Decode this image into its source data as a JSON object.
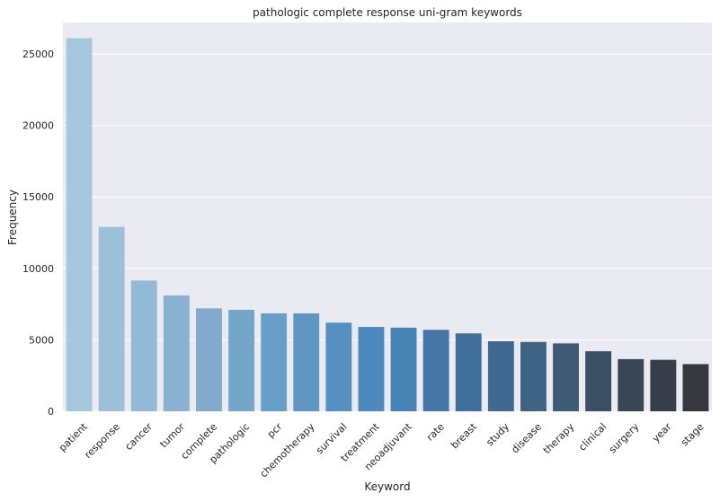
{
  "chart_data": {
    "type": "bar",
    "title": "pathologic complete response uni-gram keywords",
    "xlabel": "Keyword",
    "ylabel": "Frequency",
    "ylim": [
      0,
      27200
    ],
    "yticks": [
      0,
      5000,
      10000,
      15000,
      20000,
      25000
    ],
    "grid": true,
    "categories": [
      "patient",
      "response",
      "cancer",
      "tumor",
      "complete",
      "pathologic",
      "pcr",
      "chemotherapy",
      "survival",
      "treatment",
      "neoadjuvant",
      "rate",
      "breast",
      "study",
      "disease",
      "therapy",
      "clinical",
      "surgery",
      "year",
      "stage"
    ],
    "values": [
      26100,
      12900,
      9150,
      8100,
      7200,
      7100,
      6850,
      6850,
      6200,
      5900,
      5850,
      5700,
      5450,
      4900,
      4850,
      4750,
      4200,
      3650,
      3600,
      3300
    ],
    "colors": [
      "#a5c8df",
      "#9cc0da",
      "#92b9d6",
      "#89b2d2",
      "#83a9cd",
      "#73a6c9",
      "#669fc8",
      "#5f97c2",
      "#568fc0",
      "#4e89be",
      "#4883b6",
      "#4477a5",
      "#416f9b",
      "#3f6991",
      "#3e6384",
      "#3e5a75",
      "#3b4e64",
      "#394656",
      "#373e49",
      "#35393e"
    ]
  }
}
